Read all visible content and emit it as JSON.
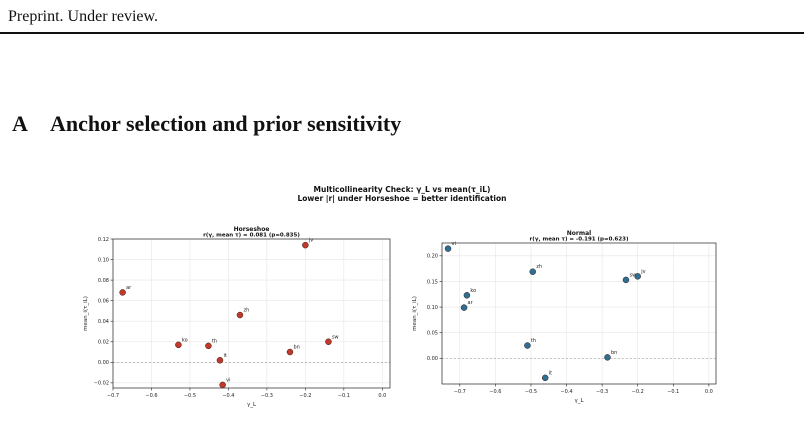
{
  "header": {
    "preprint": "Preprint. Under review."
  },
  "section": {
    "number": "A",
    "title": "Anchor selection and prior sensitivity"
  },
  "figure": {
    "title_line1": "Multicollinearity Check: γ_L vs mean(τ_iL)",
    "title_line2": "Lower |r| under Horseshoe = better identification"
  },
  "chart_data": [
    {
      "type": "scatter",
      "title": "Horseshoe",
      "subtitle": "r(γ, mean τ) = 0.081 (p=0.835)",
      "xlabel": "γ_L",
      "ylabel": "mean_i(τ_iL)",
      "xlim": [
        -0.7,
        0.02
      ],
      "ylim": [
        -0.025,
        0.12
      ],
      "xticks": [
        -0.7,
        -0.6,
        -0.5,
        -0.4,
        -0.3,
        -0.2,
        -0.1,
        0.0
      ],
      "xtick_labels": [
        "−0.7",
        "−0.6",
        "−0.5",
        "−0.4",
        "−0.3",
        "−0.2",
        "−0.1",
        "0.0"
      ],
      "yticks": [
        -0.02,
        0.0,
        0.02,
        0.04,
        0.06,
        0.08,
        0.1,
        0.12
      ],
      "ytick_labels": [
        "−0.02",
        "0.00",
        "0.02",
        "0.04",
        "0.06",
        "0.08",
        "0.10",
        "0.12"
      ],
      "grid": true,
      "reference_line_y": 0,
      "color": "#c0392b",
      "points": [
        {
          "label": "jv",
          "x": -0.2,
          "y": 0.114
        },
        {
          "label": "ar",
          "x": -0.675,
          "y": 0.068
        },
        {
          "label": "zh",
          "x": -0.37,
          "y": 0.046
        },
        {
          "label": "ko",
          "x": -0.53,
          "y": 0.017
        },
        {
          "label": "th",
          "x": -0.452,
          "y": 0.016
        },
        {
          "label": "sw",
          "x": -0.14,
          "y": 0.02
        },
        {
          "label": "bn",
          "x": -0.24,
          "y": 0.01
        },
        {
          "label": "it",
          "x": -0.422,
          "y": 0.002
        },
        {
          "label": "vi",
          "x": -0.415,
          "y": -0.022
        }
      ]
    },
    {
      "type": "scatter",
      "title": "Normal",
      "subtitle": "r(γ, mean τ) = -0.191 (p=0.623)",
      "xlabel": "γ_L",
      "ylabel": "mean_i(τ_iL)",
      "xlim": [
        -0.75,
        0.02
      ],
      "ylim": [
        -0.05,
        0.225
      ],
      "xticks": [
        -0.7,
        -0.6,
        -0.5,
        -0.4,
        -0.3,
        -0.2,
        -0.1,
        0.0
      ],
      "xtick_labels": [
        "−0.7",
        "−0.6",
        "−0.5",
        "−0.4",
        "−0.3",
        "−0.2",
        "−0.1",
        "0.0"
      ],
      "yticks": [
        0.0,
        0.05,
        0.1,
        0.15,
        0.2
      ],
      "ytick_labels": [
        "0.00",
        "0.05",
        "0.10",
        "0.15",
        "0.20"
      ],
      "grid": true,
      "reference_line_y": 0,
      "color": "#2e6f96",
      "points": [
        {
          "label": "vi",
          "x": -0.733,
          "y": 0.214
        },
        {
          "label": "zh",
          "x": -0.495,
          "y": 0.169
        },
        {
          "label": "jv",
          "x": -0.2,
          "y": 0.16
        },
        {
          "label": "sw",
          "x": -0.233,
          "y": 0.153
        },
        {
          "label": "ko",
          "x": -0.68,
          "y": 0.123
        },
        {
          "label": "ar",
          "x": -0.688,
          "y": 0.099
        },
        {
          "label": "th",
          "x": -0.51,
          "y": 0.025
        },
        {
          "label": "bn",
          "x": -0.285,
          "y": 0.002
        },
        {
          "label": "it",
          "x": -0.46,
          "y": -0.038
        }
      ]
    }
  ]
}
